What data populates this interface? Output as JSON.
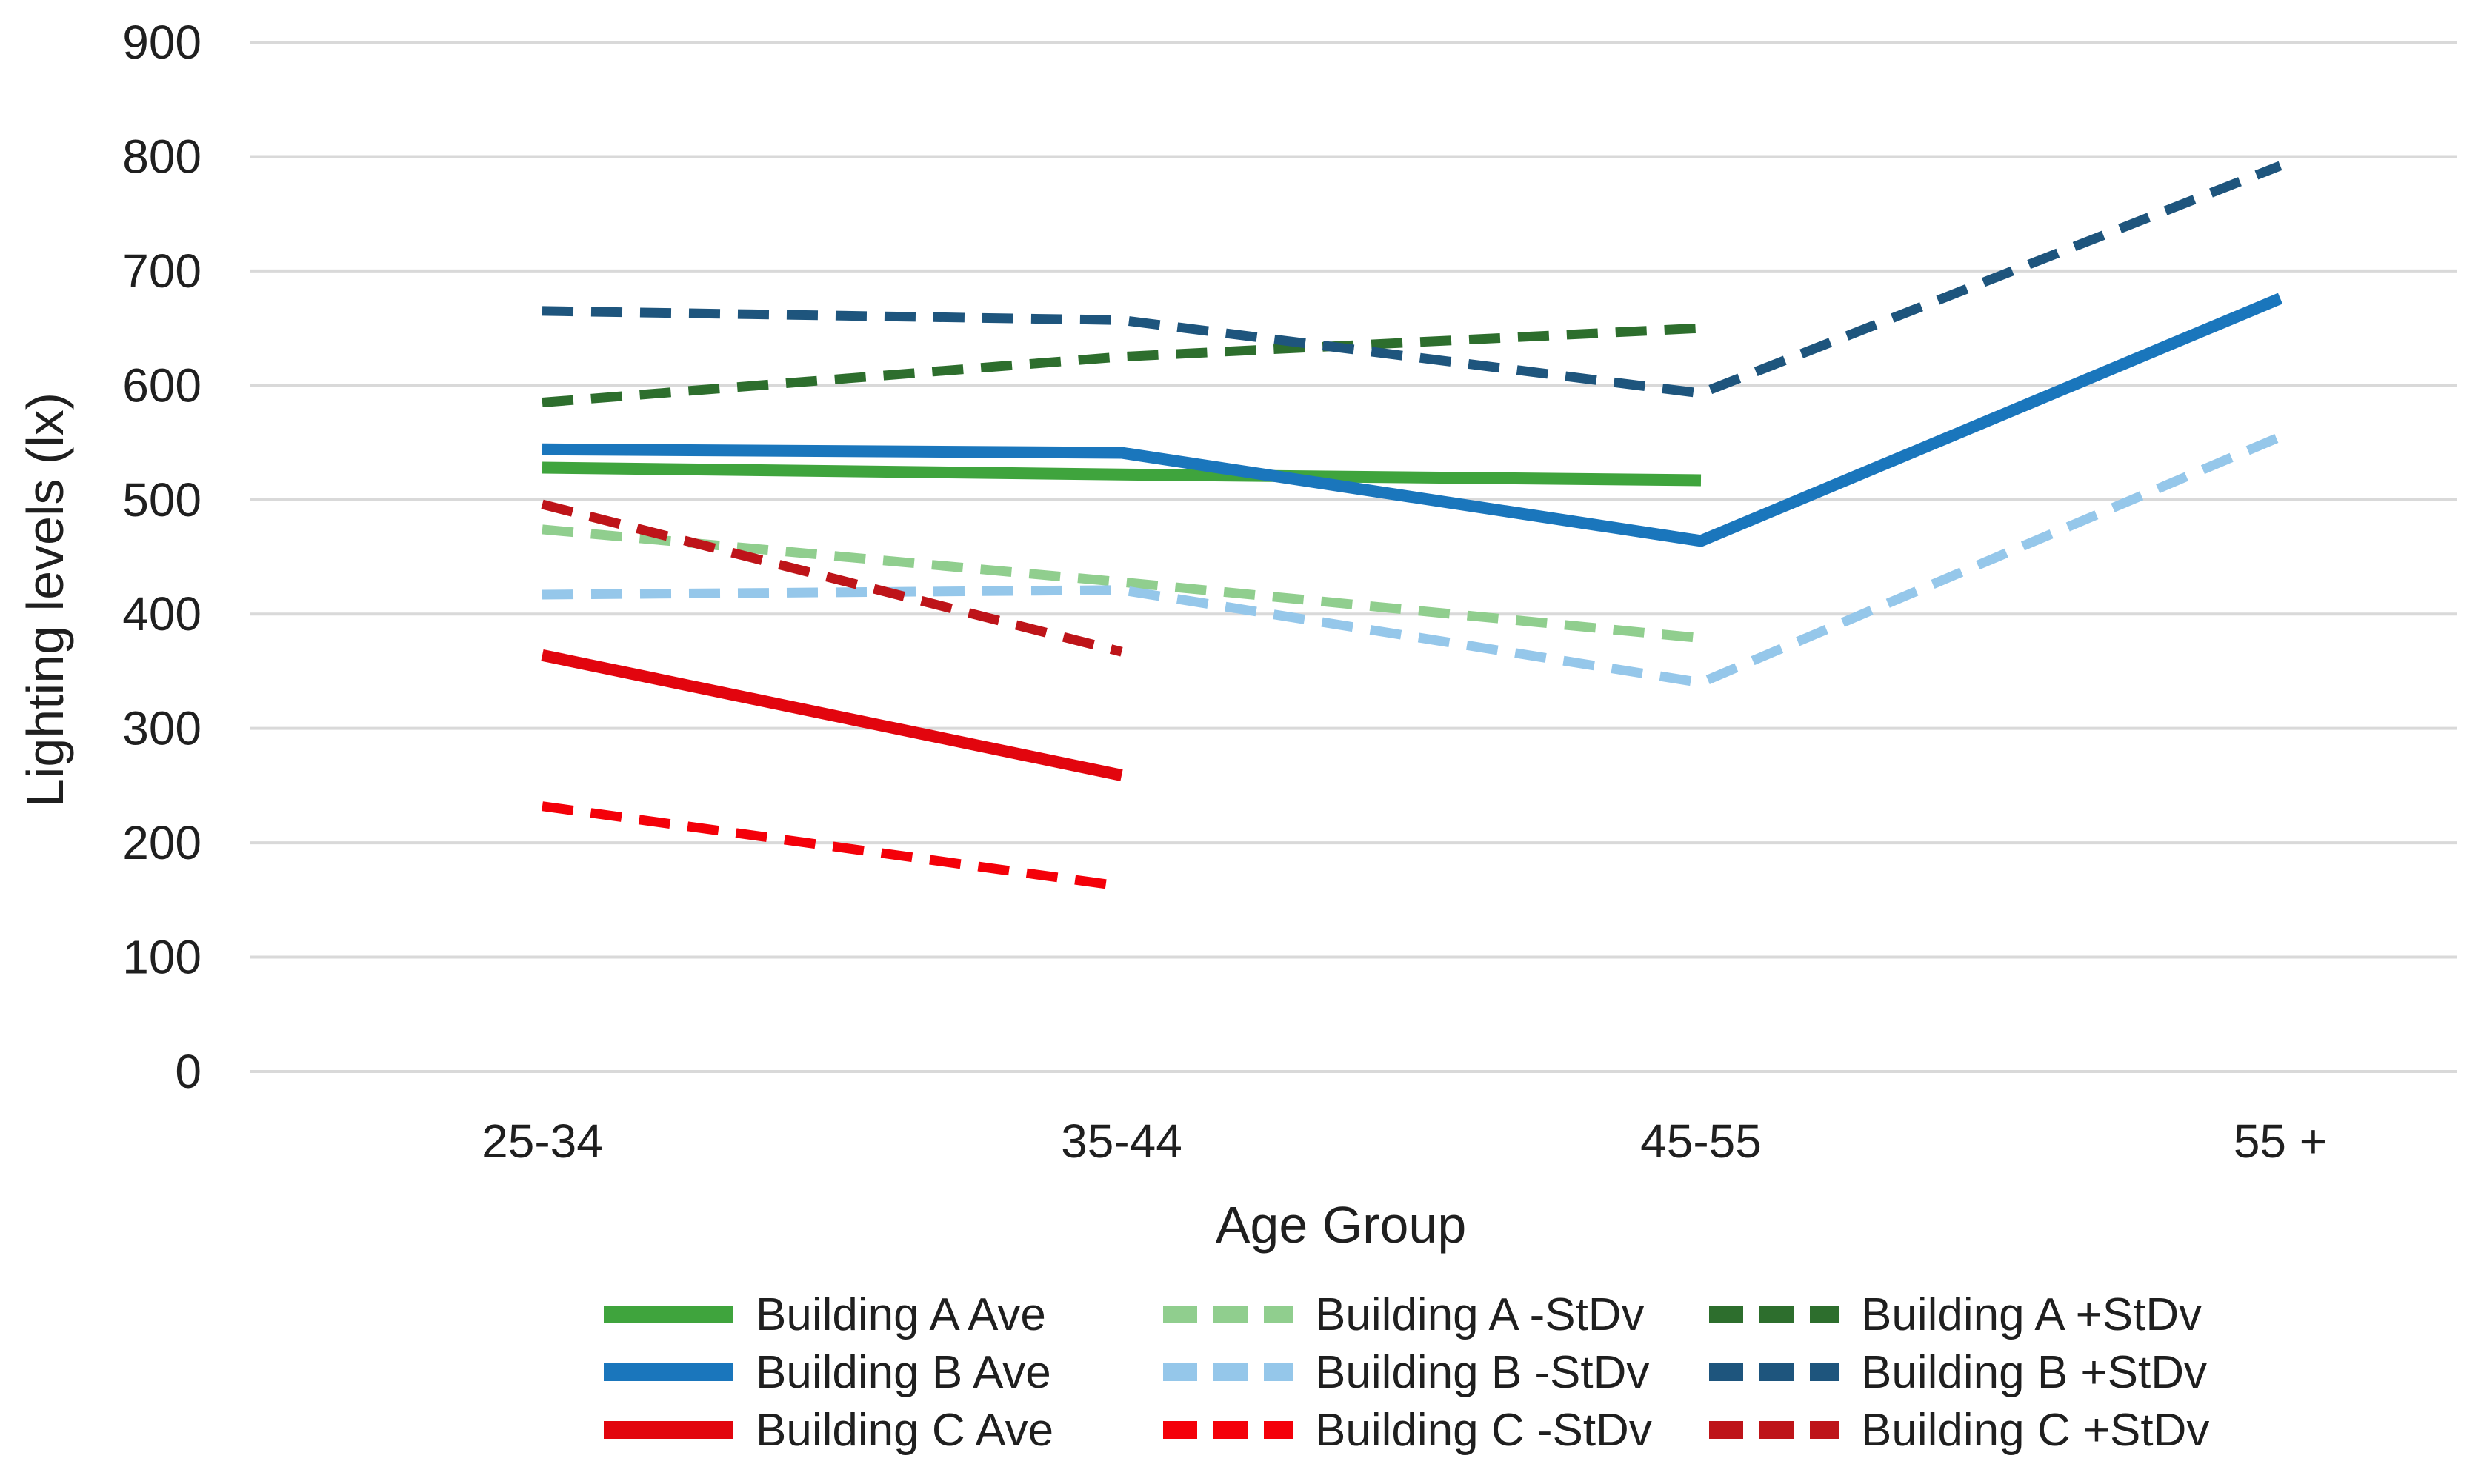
{
  "chart_data": {
    "type": "line",
    "title": "",
    "xlabel": "Age Group",
    "ylabel": "Lighting levels (lx)",
    "categories": [
      "25-34",
      "35-44",
      "45-55",
      "55 +"
    ],
    "ylim": [
      0,
      900
    ],
    "ytick_step": 100,
    "ytick_labels": [
      "0",
      "100",
      "200",
      "300",
      "400",
      "500",
      "600",
      "700",
      "800",
      "900"
    ],
    "grid": true,
    "grid_color": "#d9d9d9",
    "text_color": "#1f1f1f",
    "legend_position": "bottom",
    "legend_layout": "3 columns (Ave, -StDv, +StDv) by 3 rows (Building A, B, C)",
    "series": [
      {
        "name": "Building A Ave",
        "color": "#3fa43d",
        "dash": false,
        "values": [
          528,
          522,
          517,
          null
        ]
      },
      {
        "name": "Building A -StDv",
        "color": "#90ce8e",
        "dash": true,
        "values": [
          474,
          428,
          379,
          null
        ]
      },
      {
        "name": "Building A +StDv",
        "color": "#2d6e2d",
        "dash": true,
        "values": [
          585,
          625,
          650,
          null
        ]
      },
      {
        "name": "Building B Ave",
        "color": "#1a76bc",
        "dash": false,
        "values": [
          544,
          541,
          464,
          676
        ]
      },
      {
        "name": "Building B -StDv",
        "color": "#95c7ea",
        "dash": true,
        "values": [
          417,
          421,
          340,
          555
        ]
      },
      {
        "name": "Building B +StDv",
        "color": "#1e557d",
        "dash": true,
        "values": [
          665,
          657,
          593,
          792
        ]
      },
      {
        "name": "Building C Ave",
        "color": "#e2050e",
        "dash": false,
        "values": [
          364,
          259,
          null,
          null
        ]
      },
      {
        "name": "Building C -StDv",
        "color": "#f40009",
        "dash": true,
        "values": [
          232,
          162,
          null,
          null
        ]
      },
      {
        "name": "Building C +StDv",
        "color": "#be1419",
        "dash": true,
        "values": [
          496,
          367,
          null,
          null
        ]
      }
    ]
  }
}
